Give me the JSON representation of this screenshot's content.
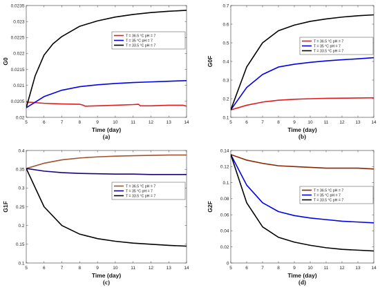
{
  "chart_data": [
    {
      "type": "line",
      "panel_label": "(a)",
      "xlabel": "Time (day)",
      "ylabel": "G0",
      "xlim": [
        5,
        14
      ],
      "ylim": [
        0.02,
        0.0235
      ],
      "xticks": [
        "5",
        "6",
        "7",
        "8",
        "9",
        "10",
        "11",
        "12",
        "13",
        "14"
      ],
      "yticks": [
        "0.02",
        "0.0205",
        "0.021",
        "0.0215",
        "0.022",
        "0.0225",
        "0.023",
        "0.0235"
      ],
      "legend_position": "upper-right",
      "series": [
        {
          "name": "T = 36.5 °C pH = 7",
          "color": "#e41a1c",
          "x": [
            5,
            5.3,
            6,
            7,
            8,
            8.2,
            8.3,
            9,
            10,
            11,
            11.3,
            11.4,
            12,
            13,
            13.8,
            14
          ],
          "y": [
            0.02048,
            0.02047,
            0.02044,
            0.02042,
            0.02041,
            0.02038,
            0.02035,
            0.02036,
            0.02038,
            0.0204,
            0.02041,
            0.02036,
            0.02036,
            0.02038,
            0.02038,
            0.02035
          ]
        },
        {
          "name": "T = 35 °C pH = 7",
          "color": "#0000ee",
          "x": [
            5,
            6,
            7,
            8,
            9,
            10,
            11,
            12,
            13,
            14
          ],
          "y": [
            0.0203,
            0.02065,
            0.02085,
            0.02096,
            0.02102,
            0.02106,
            0.02109,
            0.02111,
            0.02113,
            0.02115
          ]
        },
        {
          "name": "T = 33.5 °C pH = 7",
          "color": "#000000",
          "x": [
            5,
            5.5,
            6,
            6.5,
            7,
            8,
            9,
            10,
            11,
            12,
            13,
            14
          ],
          "y": [
            0.0203,
            0.0213,
            0.02195,
            0.0223,
            0.02253,
            0.02285,
            0.02302,
            0.02314,
            0.02322,
            0.02328,
            0.02332,
            0.02335
          ]
        }
      ]
    },
    {
      "type": "line",
      "panel_label": "(b)",
      "xlabel": "Time (day)",
      "ylabel": "G0F",
      "xlim": [
        5,
        14
      ],
      "ylim": [
        0.1,
        0.7
      ],
      "xticks": [
        "5",
        "6",
        "7",
        "8",
        "9",
        "10",
        "11",
        "12",
        "13",
        "14"
      ],
      "yticks": [
        "0.1",
        "0.2",
        "0.3",
        "0.4",
        "0.5",
        "0.6",
        "0.7"
      ],
      "legend_position": "upper-right",
      "series": [
        {
          "name": "T = 36.5 °C pH = 7",
          "color": "#e41a1c",
          "x": [
            5,
            6,
            7,
            8,
            9,
            10,
            11,
            12,
            13,
            14
          ],
          "y": [
            0.14,
            0.165,
            0.182,
            0.192,
            0.197,
            0.2,
            0.202,
            0.203,
            0.204,
            0.205
          ]
        },
        {
          "name": "T = 35 °C pH = 7",
          "color": "#0000ee",
          "x": [
            5,
            6,
            7,
            8,
            9,
            10,
            11,
            12,
            13,
            14
          ],
          "y": [
            0.14,
            0.26,
            0.33,
            0.37,
            0.385,
            0.395,
            0.403,
            0.409,
            0.414,
            0.42
          ]
        },
        {
          "name": "T = 33.5 °C pH = 7",
          "color": "#000000",
          "x": [
            5,
            6,
            7,
            8,
            9,
            10,
            11,
            12,
            13,
            14
          ],
          "y": [
            0.14,
            0.37,
            0.5,
            0.565,
            0.595,
            0.615,
            0.628,
            0.638,
            0.645,
            0.65
          ]
        }
      ]
    },
    {
      "type": "line",
      "panel_label": "(c)",
      "xlabel": "Time (day)",
      "ylabel": "G1F",
      "xlim": [
        5,
        14
      ],
      "ylim": [
        0.1,
        0.4
      ],
      "xticks": [
        "5",
        "6",
        "7",
        "8",
        "9",
        "10",
        "11",
        "12",
        "13",
        "14"
      ],
      "yticks": [
        "0.1",
        "0.15",
        "0.2",
        "0.25",
        "0.3",
        "0.35",
        "0.4"
      ],
      "legend_position": "center-right",
      "series": [
        {
          "name": "T = 36.5 °C pH = 7",
          "color": "#a0522d",
          "x": [
            5,
            6,
            7,
            8,
            9,
            10,
            11,
            12,
            13,
            14
          ],
          "y": [
            0.352,
            0.366,
            0.375,
            0.38,
            0.383,
            0.385,
            0.386,
            0.387,
            0.388,
            0.388
          ]
        },
        {
          "name": "T = 35 °C pH = 7",
          "color": "#1a0080",
          "x": [
            5,
            6,
            7,
            8,
            9,
            10,
            11,
            12,
            13,
            14
          ],
          "y": [
            0.352,
            0.345,
            0.341,
            0.339,
            0.338,
            0.337,
            0.337,
            0.336,
            0.336,
            0.336
          ]
        },
        {
          "name": "T = 33.5 °C pH = 7",
          "color": "#000000",
          "x": [
            5,
            6,
            7,
            8,
            9,
            10,
            11,
            12,
            13,
            14
          ],
          "y": [
            0.352,
            0.25,
            0.2,
            0.177,
            0.165,
            0.158,
            0.153,
            0.15,
            0.147,
            0.145
          ]
        }
      ]
    },
    {
      "type": "line",
      "panel_label": "(d)",
      "xlabel": "Time (day)",
      "ylabel": "G2F",
      "xlim": [
        5,
        14
      ],
      "ylim": [
        0,
        0.14
      ],
      "xticks": [
        "5",
        "6",
        "7",
        "8",
        "9",
        "10",
        "11",
        "12",
        "13",
        "14"
      ],
      "yticks": [
        "0",
        "0.02",
        "0.04",
        "0.06",
        "0.08",
        "0.1",
        "0.12",
        "0.14"
      ],
      "legend_position": "center-right",
      "series": [
        {
          "name": "T = 36.5 °C pH = 7",
          "color": "#8b2500",
          "x": [
            5,
            6,
            7,
            8,
            9,
            10,
            11,
            12,
            13,
            14
          ],
          "y": [
            0.135,
            0.128,
            0.124,
            0.121,
            0.12,
            0.119,
            0.118,
            0.118,
            0.118,
            0.117
          ]
        },
        {
          "name": "T = 35 °C pH = 7",
          "color": "#0000ee",
          "x": [
            5,
            6,
            7,
            8,
            9,
            10,
            11,
            12,
            13,
            14
          ],
          "y": [
            0.135,
            0.097,
            0.075,
            0.064,
            0.059,
            0.056,
            0.054,
            0.052,
            0.051,
            0.05
          ]
        },
        {
          "name": "T = 33.5 °C pH = 7",
          "color": "#000000",
          "x": [
            5,
            6,
            7,
            8,
            9,
            10,
            11,
            12,
            13,
            14
          ],
          "y": [
            0.135,
            0.075,
            0.045,
            0.032,
            0.026,
            0.022,
            0.019,
            0.017,
            0.016,
            0.015
          ]
        }
      ]
    }
  ]
}
